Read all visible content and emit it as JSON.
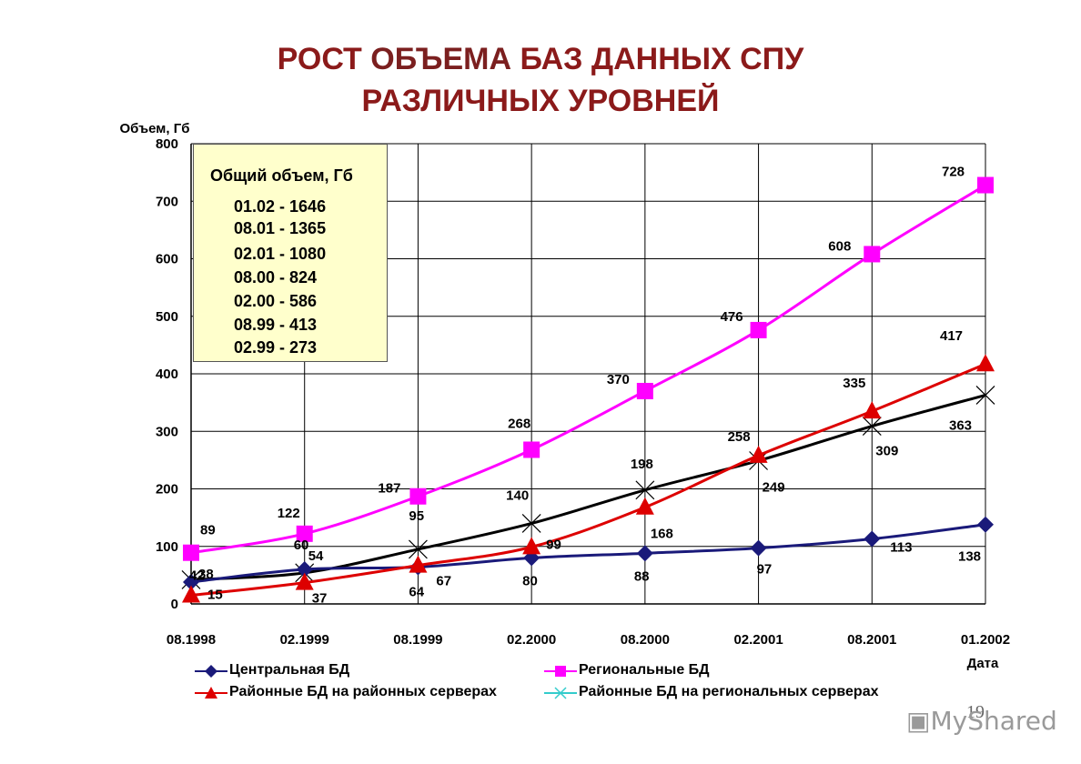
{
  "title_line1_pre": "РОСТ ",
  "title_line1_hl": "ОБЪЕМА",
  "title_line1_post": " БАЗ ДАННЫХ СПУ",
  "title_line2": "РАЗЛИЧНЫХ УРОВНЕЙ",
  "info_box": {
    "title": "Общий объем, Гб",
    "rows": [
      "01.02 - 1646",
      "08.01 - 1365",
      "02.01 - 1080",
      "08.00 - 824",
      "02.00 - 586",
      "08.99 - 413",
      "02.99 - 273"
    ]
  },
  "page_number": "19",
  "watermark": "MyShared",
  "watermark_icon": "presentation-board-icon",
  "chart_data": {
    "type": "line",
    "ylabel": "Объем, Гб",
    "xlabel": "Дата",
    "ylim": [
      0,
      800
    ],
    "yticks": [
      0,
      100,
      200,
      300,
      400,
      500,
      600,
      700,
      800
    ],
    "categories": [
      "08.1998",
      "02.1999",
      "08.1999",
      "02.2000",
      "08.2000",
      "02.2001",
      "08.2001",
      "01.2002"
    ],
    "grid": "vertical and horizontal major lines",
    "legend_position": "bottom",
    "series": [
      {
        "name": "Центральная БД",
        "color": "#1a1a7a",
        "marker": "diamond",
        "values": [
          38,
          60,
          64,
          80,
          88,
          97,
          113,
          138
        ]
      },
      {
        "name": "Региональные БД",
        "color": "#ff00ff",
        "marker": "square",
        "values": [
          89,
          122,
          187,
          268,
          370,
          476,
          608,
          728
        ]
      },
      {
        "name": "Районные БД на районных серверах",
        "color": "#dd0000",
        "marker": "triangle",
        "values": [
          15,
          37,
          67,
          99,
          168,
          258,
          335,
          417
        ]
      },
      {
        "name": "Районные БД на региональных серверах",
        "color": "#000000",
        "marker": "x",
        "values": [
          42,
          54,
          95,
          140,
          198,
          249,
          309,
          363
        ]
      }
    ]
  }
}
